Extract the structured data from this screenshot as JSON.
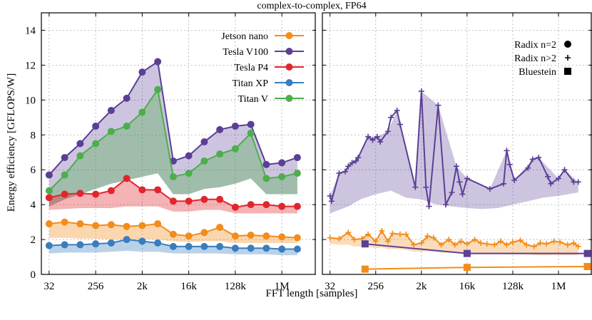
{
  "chart_data": {
    "type": "line",
    "title": "complex-to-complex, FP64",
    "xlabel": "FFT length [samples]",
    "ylabel": "Energy efficiency [GFLOPS/W]",
    "ylim": [
      0,
      15
    ],
    "y_ticks": [
      0,
      2,
      4,
      6,
      8,
      10,
      12,
      14
    ],
    "x_scale": "log2",
    "x_tick_labels": [
      "32",
      "256",
      "2k",
      "16k",
      "128k",
      "1M"
    ],
    "x_tick_log2": [
      5,
      8,
      11,
      14,
      17,
      20
    ],
    "colors": {
      "jetson": "#f28c1b",
      "v100": "#5b3f96",
      "p4": "#e0262c",
      "titanxp": "#3a7dbd",
      "titanv": "#4cae4c"
    },
    "left_panel": {
      "x_log2_range": [
        4.5,
        22.2
      ],
      "series": [
        {
          "key": "jetson",
          "name": "Jetson nano",
          "x_log2": [
            5,
            6,
            7,
            8,
            9,
            10,
            11,
            12,
            13,
            14,
            15,
            16,
            17,
            18,
            19,
            20,
            21
          ],
          "values": [
            2.9,
            3.0,
            2.9,
            2.8,
            2.85,
            2.75,
            2.8,
            2.9,
            2.3,
            2.2,
            2.4,
            2.7,
            2.2,
            2.25,
            2.2,
            2.15,
            2.1
          ],
          "band_low": [
            2.1,
            2.1,
            2.05,
            2.05,
            2.0,
            2.0,
            2.0,
            2.0,
            1.9,
            1.85,
            1.9,
            1.9,
            1.8,
            1.8,
            1.8,
            1.8,
            1.8
          ]
        },
        {
          "key": "v100",
          "name": "Tesla V100",
          "x_log2": [
            5,
            6,
            7,
            8,
            9,
            10,
            11,
            12,
            13,
            14,
            15,
            16,
            17,
            18,
            19,
            20,
            21
          ],
          "values": [
            5.7,
            6.7,
            7.5,
            8.5,
            9.4,
            10.1,
            11.6,
            12.2,
            6.5,
            6.8,
            7.6,
            8.3,
            8.5,
            8.6,
            6.3,
            6.4,
            6.7
          ],
          "band_low": null
        },
        {
          "key": "p4",
          "name": "Tesla P4",
          "x_log2": [
            5,
            6,
            7,
            8,
            9,
            10,
            11,
            12,
            13,
            14,
            15,
            16,
            17,
            18,
            19,
            20,
            21
          ],
          "values": [
            4.4,
            4.6,
            4.65,
            4.6,
            4.8,
            5.5,
            4.85,
            4.85,
            4.2,
            4.2,
            4.3,
            4.3,
            3.85,
            4.0,
            4.0,
            3.9,
            3.9
          ],
          "band_low": [
            3.7,
            3.75,
            3.8,
            3.8,
            3.8,
            3.9,
            3.9,
            3.9,
            3.6,
            3.6,
            3.7,
            3.7,
            3.5,
            3.5,
            3.5,
            3.5,
            3.5
          ]
        },
        {
          "key": "titanxp",
          "name": "Titan XP",
          "x_log2": [
            5,
            6,
            7,
            8,
            9,
            10,
            11,
            12,
            13,
            14,
            15,
            16,
            17,
            18,
            19,
            20,
            21
          ],
          "values": [
            1.65,
            1.7,
            1.7,
            1.75,
            1.8,
            2.0,
            1.9,
            1.8,
            1.6,
            1.6,
            1.6,
            1.6,
            1.5,
            1.5,
            1.5,
            1.45,
            1.45
          ],
          "band_low": [
            1.2,
            1.25,
            1.25,
            1.25,
            1.3,
            1.35,
            1.3,
            1.3,
            1.2,
            1.2,
            1.2,
            1.2,
            1.15,
            1.15,
            1.15,
            1.1,
            1.1
          ]
        },
        {
          "key": "titanv",
          "name": "Titan V",
          "x_log2": [
            5,
            6,
            7,
            8,
            9,
            10,
            11,
            12,
            13,
            14,
            15,
            16,
            17,
            18,
            19,
            20,
            21
          ],
          "values": [
            4.8,
            5.7,
            6.8,
            7.5,
            8.2,
            8.5,
            9.3,
            10.6,
            5.6,
            5.8,
            6.5,
            6.9,
            7.2,
            8.1,
            5.5,
            5.6,
            5.8
          ],
          "band_low": [
            3.9,
            4.3,
            4.6,
            4.9,
            5.2,
            5.4,
            5.6,
            5.8,
            4.6,
            4.6,
            4.9,
            5.0,
            5.2,
            5.5,
            4.6,
            4.6,
            4.6
          ]
        }
      ]
    },
    "right_panel": {
      "x_log2_range": [
        4.5,
        22.2
      ],
      "series": [
        {
          "key": "v100",
          "marker": "plus",
          "x_log2": [
            5.0,
            5.1,
            5.6,
            6.0,
            6.2,
            6.45,
            6.7,
            6.85,
            7.5,
            7.8,
            8.1,
            8.3,
            8.8,
            9.0,
            9.4,
            9.6,
            10.6,
            11.0,
            11.3,
            11.5,
            12.1,
            12.6,
            13.0,
            13.3,
            13.5,
            13.7,
            14.0,
            15.5,
            16.4,
            16.6,
            16.8,
            17.1,
            18.0,
            18.3,
            18.7,
            19.3,
            19.5,
            20.0,
            20.4,
            21.0,
            21.3
          ],
          "values": [
            4.5,
            4.2,
            5.8,
            5.9,
            6.2,
            6.4,
            6.5,
            6.7,
            7.9,
            7.7,
            7.9,
            7.6,
            8.2,
            9.0,
            9.4,
            8.6,
            5.0,
            10.5,
            5.0,
            3.9,
            9.7,
            4.0,
            4.7,
            6.2,
            5.3,
            4.6,
            5.5,
            4.9,
            5.2,
            7.1,
            6.3,
            5.4,
            6.1,
            6.6,
            6.7,
            5.6,
            5.2,
            5.5,
            6.0,
            5.3,
            5.3
          ],
          "band_low": null
        },
        {
          "key": "jetson",
          "marker": "plus",
          "x_log2": [
            5.0,
            5.6,
            6.2,
            6.6,
            7.1,
            7.5,
            8.0,
            8.4,
            8.8,
            9.1,
            9.6,
            10.0,
            10.5,
            11.0,
            11.4,
            11.8,
            12.3,
            12.8,
            13.2,
            13.6,
            14.0,
            14.5,
            14.9,
            15.3,
            15.8,
            16.2,
            16.6,
            17.0,
            17.5,
            17.9,
            18.4,
            18.8,
            19.2,
            19.7,
            20.1,
            20.6,
            21.0,
            21.3
          ],
          "values": [
            2.1,
            2.05,
            2.4,
            2.0,
            2.05,
            2.3,
            1.9,
            2.5,
            1.9,
            2.35,
            2.3,
            2.3,
            1.7,
            1.8,
            2.2,
            2.1,
            1.7,
            2.0,
            1.7,
            1.9,
            1.75,
            2.0,
            1.8,
            1.75,
            1.7,
            1.9,
            1.7,
            1.85,
            1.95,
            1.7,
            1.6,
            1.8,
            1.75,
            1.9,
            1.85,
            1.7,
            1.8,
            1.6
          ],
          "band_low": [
            1.75,
            1.7,
            1.7,
            1.6,
            1.6,
            1.6,
            1.5,
            1.55,
            1.45,
            1.45,
            1.45,
            1.4,
            1.3,
            1.3,
            1.35,
            1.3,
            1.25,
            1.25,
            1.25,
            1.25,
            1.25,
            1.2,
            1.2,
            1.2,
            1.2,
            1.2,
            1.15,
            1.15,
            1.15,
            1.15,
            1.1,
            1.1,
            1.1,
            1.1,
            1.1,
            1.1,
            1.1,
            1.1
          ]
        },
        {
          "key": "v100",
          "marker": "square",
          "x_log2": [
            7.3,
            14.0,
            21.9
          ],
          "values": [
            1.75,
            1.2,
            1.2
          ],
          "band_low": null
        },
        {
          "key": "jetson",
          "marker": "square",
          "x_log2": [
            7.3,
            14.0,
            21.9
          ],
          "values": [
            0.3,
            0.4,
            0.45
          ],
          "band_low": null
        }
      ],
      "v100_band_upper_x_log2": [
        5.0,
        5.6,
        6.0,
        6.45,
        6.85,
        7.5,
        8.1,
        8.8,
        9.4,
        10.6,
        11.0,
        12.1,
        13.3,
        14.0,
        15.5,
        16.6,
        17.1,
        18.3,
        18.7,
        20.0,
        20.4,
        21.3
      ],
      "v100_band_upper_values": [
        4.5,
        5.8,
        5.9,
        6.4,
        6.7,
        7.9,
        7.9,
        8.2,
        9.4,
        5.0,
        10.5,
        9.7,
        6.2,
        5.5,
        4.9,
        7.1,
        5.4,
        6.6,
        6.7,
        5.5,
        6.0,
        5.3
      ],
      "v100_band_lower_x_log2": [
        5.0,
        5.6,
        6.2,
        7.0,
        8.0,
        9.0,
        10.0,
        11.0,
        12.0,
        13.0,
        14.0,
        15.0,
        16.0,
        17.0,
        18.0,
        19.0,
        20.0,
        21.3
      ],
      "v100_band_lower_values": [
        3.5,
        3.7,
        3.9,
        4.3,
        4.6,
        4.8,
        4.4,
        4.3,
        4.0,
        3.9,
        3.8,
        3.75,
        3.8,
        4.0,
        4.2,
        4.4,
        4.5,
        4.7
      ]
    },
    "legend_devices": {
      "position": "top-right of left panel",
      "entries": [
        {
          "key": "jetson",
          "label": "Jetson nano"
        },
        {
          "key": "v100",
          "label": "Tesla V100"
        },
        {
          "key": "p4",
          "label": "Tesla P4"
        },
        {
          "key": "titanxp",
          "label": "Titan XP"
        },
        {
          "key": "titanv",
          "label": "Titan V"
        }
      ]
    },
    "legend_markers": {
      "position": "top-right of right panel",
      "entries": [
        {
          "marker": "circle",
          "label": "Radix n=2"
        },
        {
          "marker": "plus",
          "label": "Radix n>2"
        },
        {
          "marker": "square",
          "label": "Bluestein"
        }
      ]
    }
  }
}
